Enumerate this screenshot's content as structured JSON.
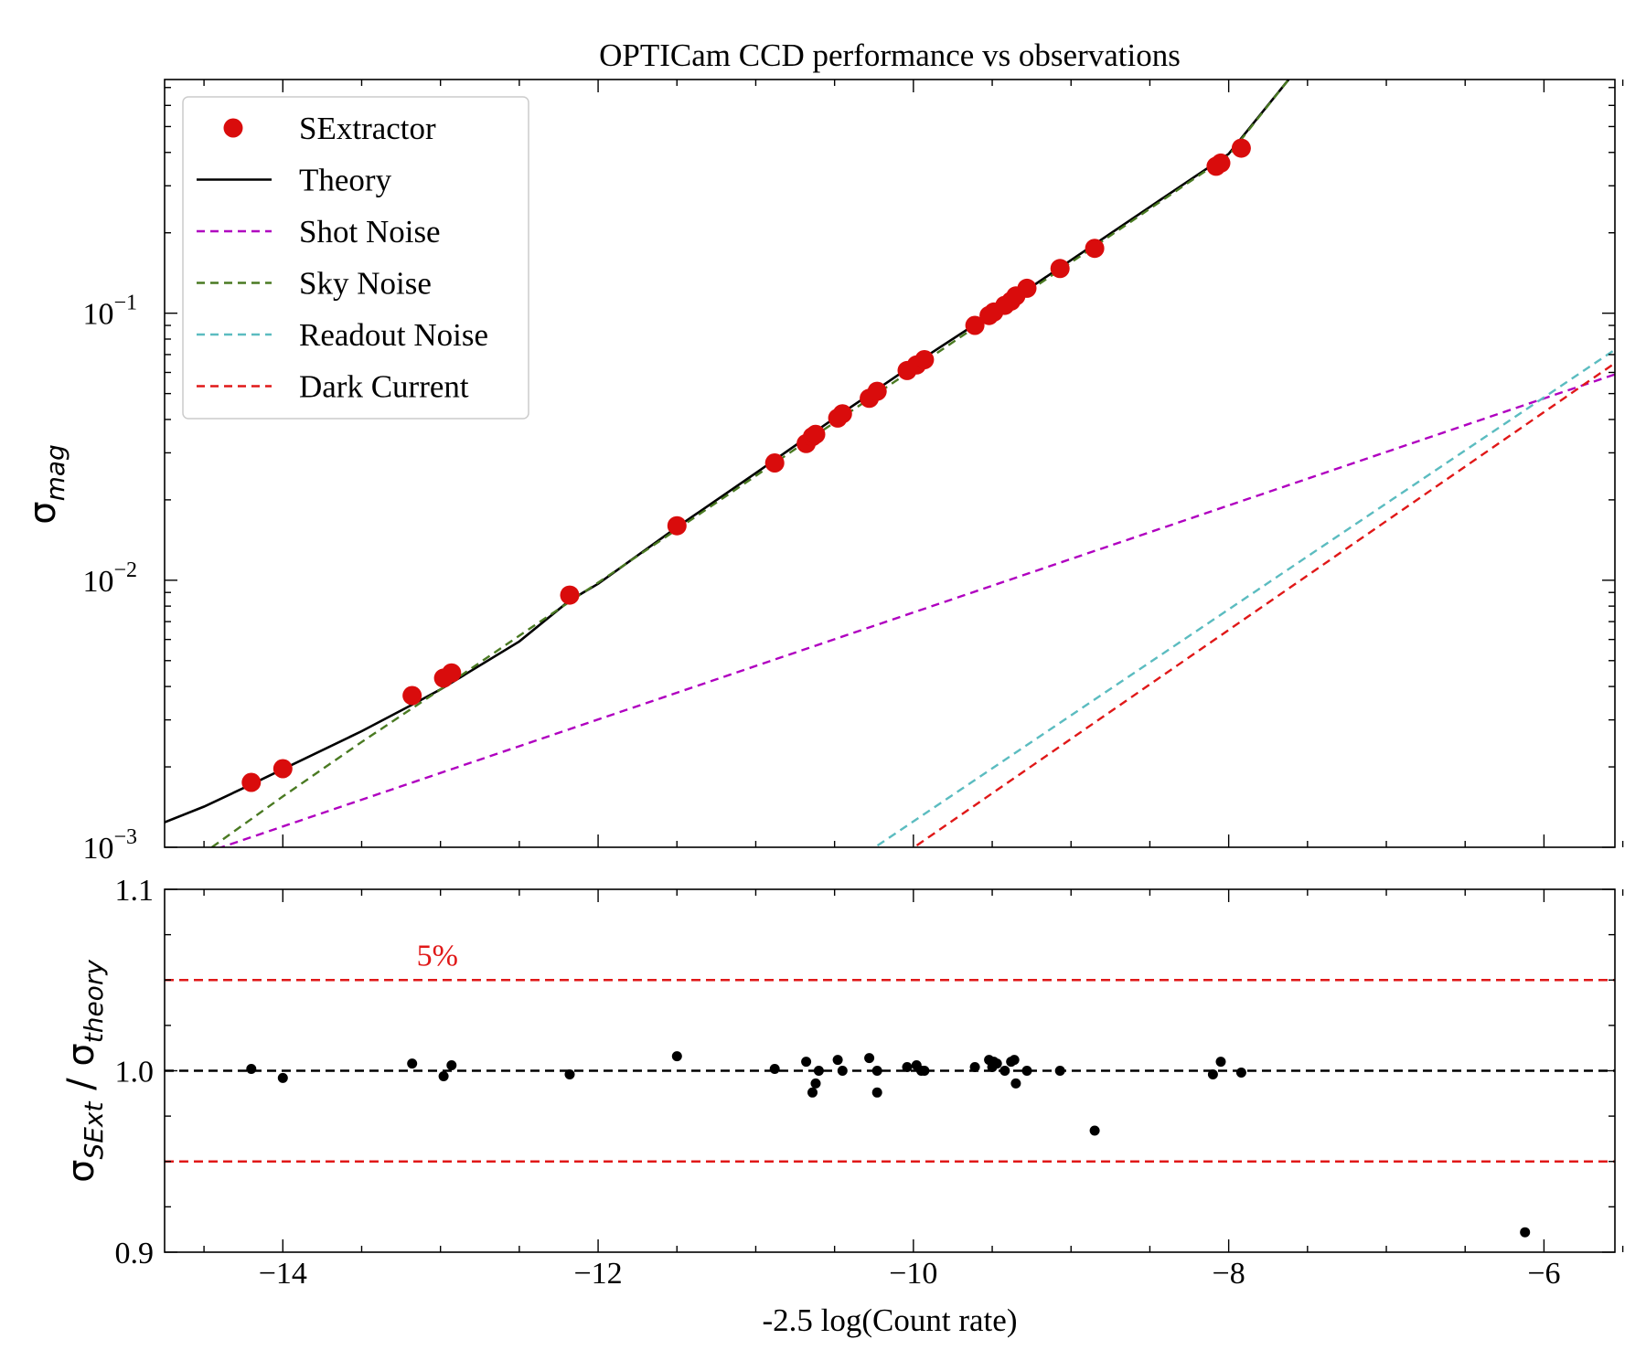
{
  "chart_data": [
    {
      "type": "line",
      "title": "OPTICam CCD performance vs observations",
      "xlabel": "",
      "ylabel_symbol": "σ",
      "ylabel_subscript": "mag",
      "yscale": "log",
      "xlim": [
        -14.75,
        -5.55
      ],
      "ylim": [
        0.001,
        0.75
      ],
      "ytick_labels": [
        {
          "value": 0.001,
          "base": "10",
          "exp": "−3"
        },
        {
          "value": 0.01,
          "base": "10",
          "exp": "−2"
        },
        {
          "value": 0.1,
          "base": "10",
          "exp": "−1"
        }
      ],
      "legend_position": "top-left",
      "colors": {
        "sextractor": "#d90c0c",
        "theory": "#000000",
        "shot": "#b000c0",
        "sky": "#4a7a22",
        "readout": "#5bbcc0",
        "dark": "#e01818"
      },
      "series": [
        {
          "key": "sextractor",
          "name": "SExtractor",
          "style": "markers",
          "x": [
            -14.2,
            -14.0,
            -13.18,
            -12.98,
            -12.93,
            -12.18,
            -11.5,
            -10.88,
            -10.68,
            -10.64,
            -10.62,
            -10.48,
            -10.45,
            -10.28,
            -10.23,
            -10.04,
            -9.98,
            -9.93,
            -9.61,
            -9.52,
            -9.49,
            -9.42,
            -9.38,
            -9.35,
            -9.28,
            -9.07,
            -8.85,
            -8.08,
            -8.05,
            -7.92
          ],
          "y": [
            0.00175,
            0.00197,
            0.0037,
            0.0043,
            0.0045,
            0.0088,
            0.016,
            0.0275,
            0.0325,
            0.0345,
            0.0352,
            0.0405,
            0.042,
            0.048,
            0.051,
            0.061,
            0.064,
            0.067,
            0.09,
            0.098,
            0.101,
            0.107,
            0.111,
            0.116,
            0.124,
            0.147,
            0.175,
            0.355,
            0.365,
            0.415
          ]
        },
        {
          "key": "theory",
          "name": "Theory",
          "style": "solid",
          "x": [
            -14.75,
            -14.5,
            -14.2,
            -14.0,
            -13.5,
            -13.18,
            -13.0,
            -12.5,
            -12.18,
            -12.0,
            -11.5,
            -11.0,
            -10.5,
            -10.0,
            -9.5,
            -9.0,
            -8.5,
            -8.0,
            -7.62
          ],
          "y": [
            0.00124,
            0.00142,
            0.00172,
            0.00196,
            0.00272,
            0.00342,
            0.0039,
            0.0059,
            0.0084,
            0.0097,
            0.0158,
            0.0252,
            0.0405,
            0.0642,
            0.1,
            0.158,
            0.25,
            0.395,
            0.75
          ]
        },
        {
          "key": "shot",
          "name": "Shot Noise",
          "style": "dashed",
          "x": [
            -14.5,
            -5.55
          ],
          "y": [
            0.00095,
            0.059
          ]
        },
        {
          "key": "sky",
          "name": "Sky Noise",
          "style": "dashed",
          "x": [
            -14.45,
            -14.0,
            -13.5,
            -13.0,
            -12.5,
            -12.0,
            -11.5,
            -11.0,
            -10.5,
            -10.0,
            -9.5,
            -9.0,
            -8.5,
            -8.0,
            -7.62
          ],
          "y": [
            0.001,
            0.00155,
            0.00248,
            0.0039,
            0.0062,
            0.0098,
            0.0155,
            0.0246,
            0.039,
            0.0618,
            0.098,
            0.155,
            0.246,
            0.39,
            0.75
          ]
        },
        {
          "key": "readout",
          "name": "Readout Noise",
          "style": "dashed",
          "x": [
            -10.3,
            -5.55
          ],
          "y": [
            0.00095,
            0.073
          ]
        },
        {
          "key": "dark",
          "name": "Dark Current",
          "style": "dashed",
          "x": [
            -10.05,
            -5.55
          ],
          "y": [
            0.00095,
            0.065
          ]
        }
      ]
    },
    {
      "type": "scatter",
      "title": "",
      "xlabel": "-2.5 log(Count rate)",
      "ylabel": "σ_SExt / σ_theory",
      "ylabel_parts": {
        "sym1": "σ",
        "sub1": "SExt",
        "slash": " / ",
        "sym2": "σ",
        "sub2": "theory"
      },
      "xlim": [
        -14.75,
        -5.55
      ],
      "ylim": [
        0.9,
        1.1
      ],
      "xtick_labels": [
        {
          "value": -14,
          "label": "−14"
        },
        {
          "value": -12,
          "label": "−12"
        },
        {
          "value": -10,
          "label": "−10"
        },
        {
          "value": -8,
          "label": "−8"
        },
        {
          "value": -6,
          "label": "−6"
        }
      ],
      "ytick_labels": [
        {
          "value": 0.9,
          "label": "0.9"
        },
        {
          "value": 1.0,
          "label": "1.0"
        },
        {
          "value": 1.1,
          "label": "1.1"
        }
      ],
      "reference_lines": [
        {
          "y": 1.05,
          "color": "#e01818",
          "style": "dashed"
        },
        {
          "y": 1.0,
          "color": "#000000",
          "style": "dashed"
        },
        {
          "y": 0.95,
          "color": "#e01818",
          "style": "dashed"
        }
      ],
      "annotation": {
        "text": "5%",
        "x": -13.02,
        "y": 1.058,
        "color": "#e01818"
      },
      "points": {
        "x": [
          -14.2,
          -14.0,
          -13.18,
          -12.98,
          -12.93,
          -12.18,
          -11.5,
          -10.88,
          -10.68,
          -10.62,
          -10.64,
          -10.6,
          -10.48,
          -10.45,
          -10.28,
          -10.23,
          -10.23,
          -10.04,
          -9.98,
          -9.95,
          -9.93,
          -9.61,
          -9.52,
          -9.5,
          -9.49,
          -9.47,
          -9.42,
          -9.38,
          -9.36,
          -9.35,
          -9.28,
          -9.07,
          -8.85,
          -8.1,
          -8.05,
          -7.92,
          -6.12
        ],
        "y": [
          1.001,
          0.996,
          1.004,
          0.997,
          1.003,
          0.998,
          1.008,
          1.001,
          1.005,
          0.993,
          0.988,
          1.0,
          1.006,
          1.0,
          1.007,
          1.0,
          0.988,
          1.002,
          1.003,
          1.0,
          1.0,
          1.002,
          1.006,
          1.002,
          1.005,
          1.004,
          1.0,
          1.005,
          1.006,
          0.993,
          1.0,
          1.0,
          0.967,
          0.998,
          1.005,
          0.999,
          0.911
        ]
      }
    }
  ]
}
